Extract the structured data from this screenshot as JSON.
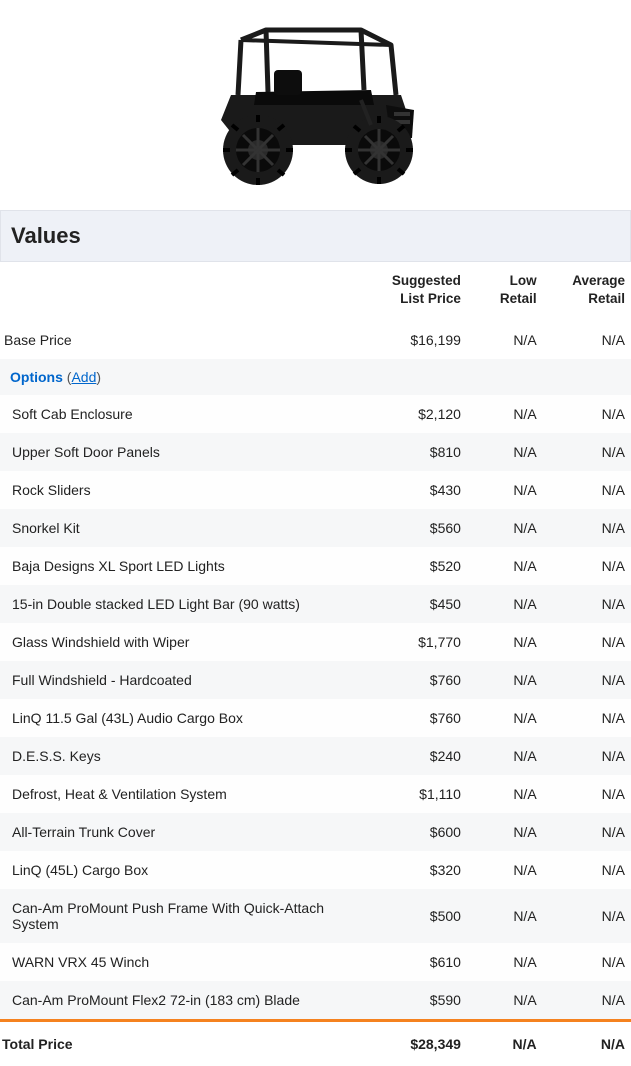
{
  "section_title": "Values",
  "columns": {
    "suggested": "Suggested\nList Price",
    "low": "Low\nRetail",
    "average": "Average\nRetail"
  },
  "base": {
    "label": "Base Price",
    "suggested": "$16,199",
    "low": "N/A",
    "average": "N/A"
  },
  "options_header": {
    "label": "Options",
    "add_text": "Add"
  },
  "options": [
    {
      "label": "Soft Cab Enclosure",
      "suggested": "$2,120",
      "low": "N/A",
      "average": "N/A"
    },
    {
      "label": "Upper Soft Door Panels",
      "suggested": "$810",
      "low": "N/A",
      "average": "N/A"
    },
    {
      "label": "Rock Sliders",
      "suggested": "$430",
      "low": "N/A",
      "average": "N/A"
    },
    {
      "label": "Snorkel Kit",
      "suggested": "$560",
      "low": "N/A",
      "average": "N/A"
    },
    {
      "label": "Baja Designs XL Sport LED Lights",
      "suggested": "$520",
      "low": "N/A",
      "average": "N/A"
    },
    {
      "label": "15-in Double stacked LED Light Bar (90 watts)",
      "suggested": "$450",
      "low": "N/A",
      "average": "N/A"
    },
    {
      "label": "Glass Windshield with Wiper",
      "suggested": "$1,770",
      "low": "N/A",
      "average": "N/A"
    },
    {
      "label": "Full Windshield - Hardcoated",
      "suggested": "$760",
      "low": "N/A",
      "average": "N/A"
    },
    {
      "label": "LinQ 11.5 Gal (43L) Audio Cargo Box",
      "suggested": "$760",
      "low": "N/A",
      "average": "N/A"
    },
    {
      "label": "D.E.S.S. Keys",
      "suggested": "$240",
      "low": "N/A",
      "average": "N/A"
    },
    {
      "label": "Defrost, Heat & Ventilation System",
      "suggested": "$1,110",
      "low": "N/A",
      "average": "N/A"
    },
    {
      "label": "All-Terrain Trunk Cover",
      "suggested": "$600",
      "low": "N/A",
      "average": "N/A"
    },
    {
      "label": "LinQ (45L) Cargo Box",
      "suggested": "$320",
      "low": "N/A",
      "average": "N/A"
    },
    {
      "label": "Can-Am ProMount Push Frame With Quick-Attach System",
      "suggested": "$500",
      "low": "N/A",
      "average": "N/A"
    },
    {
      "label": "WARN VRX 45 Winch",
      "suggested": "$610",
      "low": "N/A",
      "average": "N/A"
    },
    {
      "label": "Can-Am ProMount Flex2 72-in (183 cm) Blade",
      "suggested": "$590",
      "low": "N/A",
      "average": "N/A"
    }
  ],
  "total": {
    "label": "Total Price",
    "suggested": "$28,349",
    "low": "N/A",
    "average": "N/A"
  },
  "colors": {
    "header_bg": "#eef1f7",
    "accent_border": "#f5821f",
    "link": "#0066cc",
    "row_alt": "#f6f7f8"
  }
}
